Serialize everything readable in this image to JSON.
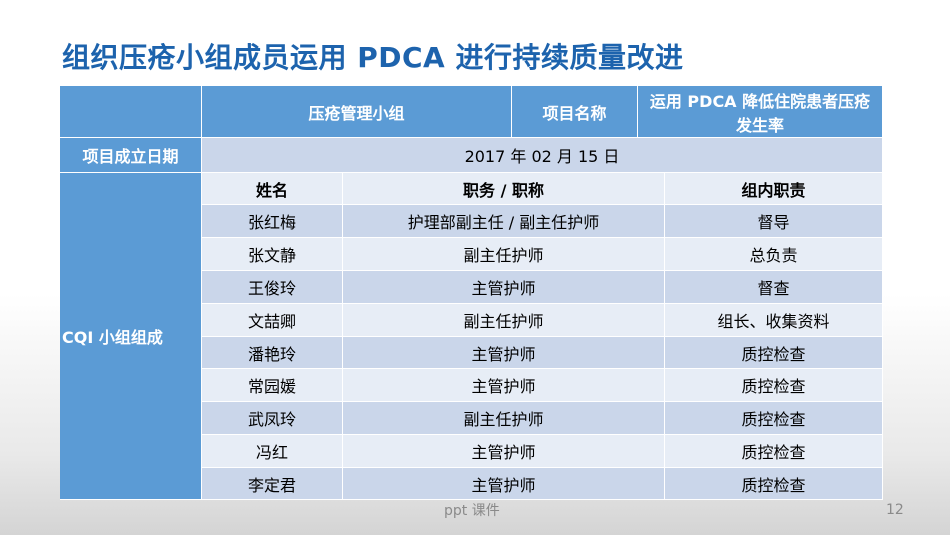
{
  "title": "组织压疮小组成员运用 PDCA 进行持续质量改进",
  "header": {
    "group_name": "压疮管理小组",
    "project_name_label": "项目名称",
    "project_name_value": "运用 PDCA 降低住院患者压疮发生率"
  },
  "date_row": {
    "label": "项目成立日期",
    "value": "2017 年 02 月 15 日"
  },
  "members_label": "CQI 小组组成",
  "columns": [
    "姓名",
    "职务 / 职称",
    "组内职责"
  ],
  "members": [
    {
      "name": "张红梅",
      "position": "护理部副主任 / 副主任护师",
      "role": "督导"
    },
    {
      "name": "张文静",
      "position": "副主任护师",
      "role": "总负责"
    },
    {
      "name": "王俊玲",
      "position": "主管护师",
      "role": "督查"
    },
    {
      "name": "文喆卿",
      "position": "副主任护师",
      "role": "组长、收集资料"
    },
    {
      "name": "潘艳玲",
      "position": "主管护师",
      "role": "质控检查"
    },
    {
      "name": "常园媛",
      "position": "主管护师",
      "role": "质控检查"
    },
    {
      "name": "武凤玲",
      "position": "副主任护师",
      "role": "质控检查"
    },
    {
      "name": "冯红",
      "position": "主管护师",
      "role": "质控检查"
    },
    {
      "name": "李定君",
      "position": "主管护师",
      "role": "质控检查"
    }
  ],
  "footer": {
    "source": "ppt 课件",
    "page_number": "12"
  }
}
